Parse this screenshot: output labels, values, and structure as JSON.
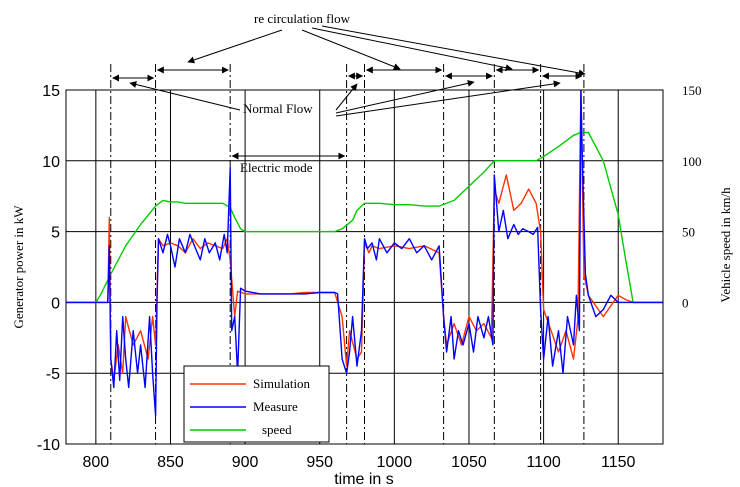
{
  "chart_data": {
    "type": "line",
    "xlabel": "time in s",
    "ylabel": "Generator power in kW",
    "ylabel_right": "Vehicle speed in km/h",
    "xlim": [
      780,
      1180
    ],
    "ylim": [
      -10,
      15
    ],
    "ylim_right": [
      -100,
      150
    ],
    "x_ticks": [
      800,
      850,
      900,
      950,
      1000,
      1050,
      1100,
      1150
    ],
    "y_ticks": [
      -10,
      -5,
      0,
      5,
      10,
      15
    ],
    "y_ticks_right": [
      0,
      50,
      100,
      150
    ],
    "grid": true,
    "legend_placement": "bottom-left",
    "legend": [
      "Simulation",
      "Measure",
      "speed"
    ],
    "colors": {
      "simulation": "#ff3300",
      "measure": "#0000ff",
      "speed": "#00cc00"
    },
    "annotations": {
      "recirculation": "re circulation flow",
      "normal": "Normal Flow",
      "electric": "Electric mode"
    },
    "phase_markers_x": [
      810,
      840,
      890,
      968,
      980,
      1033,
      1067,
      1098,
      1127
    ],
    "series": [
      {
        "name": "speed",
        "axis": "right",
        "x": [
          780,
          800,
          803,
          810,
          820,
          830,
          840,
          845,
          850,
          855,
          860,
          870,
          880,
          885,
          890,
          893,
          897,
          900,
          920,
          940,
          960,
          965,
          972,
          975,
          980,
          985,
          990,
          1000,
          1010,
          1020,
          1030,
          1040,
          1050,
          1060,
          1067,
          1070,
          1080,
          1095,
          1100,
          1110,
          1120,
          1125,
          1130,
          1140,
          1150,
          1155,
          1160,
          1180
        ],
        "values": [
          0,
          0,
          5,
          20,
          40,
          55,
          68,
          72,
          71,
          71,
          70,
          70,
          70,
          70,
          67,
          60,
          52,
          50,
          50,
          50,
          50,
          52,
          58,
          65,
          70,
          70,
          70,
          69,
          69,
          68,
          68,
          72,
          82,
          92,
          100,
          100,
          100,
          100,
          103,
          110,
          118,
          120,
          120,
          100,
          62,
          30,
          0,
          0
        ]
      },
      {
        "name": "Simulation",
        "axis": "left",
        "x": [
          780,
          805,
          808,
          809,
          810,
          812,
          815,
          818,
          820,
          825,
          830,
          835,
          838,
          840,
          842,
          845,
          850,
          855,
          860,
          865,
          870,
          875,
          880,
          885,
          888,
          890,
          893,
          895,
          900,
          910,
          920,
          930,
          940,
          950,
          960,
          965,
          968,
          970,
          975,
          978,
          980,
          983,
          985,
          990,
          1000,
          1010,
          1020,
          1030,
          1033,
          1035,
          1040,
          1045,
          1050,
          1055,
          1060,
          1065,
          1067,
          1070,
          1075,
          1080,
          1085,
          1090,
          1095,
          1098,
          1100,
          1105,
          1110,
          1115,
          1120,
          1123,
          1125,
          1127,
          1130,
          1140,
          1150,
          1155,
          1160,
          1180
        ],
        "values": [
          0,
          0,
          0,
          6,
          -4,
          -5.5,
          -3,
          -5,
          -1,
          -3,
          -2,
          -4,
          -1,
          -3,
          4.5,
          4,
          4.2,
          4,
          3.5,
          4.5,
          3.8,
          4.2,
          4,
          3.8,
          4.5,
          3,
          -1,
          0.8,
          0.6,
          0.6,
          0.6,
          0.6,
          0.7,
          0.7,
          0.7,
          -1,
          -4.5,
          -2,
          -4,
          -3.5,
          4.2,
          3.5,
          4,
          3.8,
          4,
          3.8,
          4,
          3.5,
          -1,
          -3,
          -1.5,
          -3,
          -1,
          -2,
          -1.5,
          -2.5,
          8,
          7,
          9,
          6.5,
          7,
          8,
          7,
          5,
          -0.5,
          -2,
          -3.5,
          -2,
          -4,
          -1.2,
          15,
          2,
          0.5,
          -1,
          0.5,
          0.2,
          0,
          0
        ]
      },
      {
        "name": "Measure",
        "axis": "left",
        "x": [
          780,
          805,
          808,
          809,
          810,
          812,
          814,
          816,
          818,
          820,
          822,
          825,
          828,
          830,
          833,
          836,
          838,
          840,
          841,
          842,
          845,
          848,
          850,
          853,
          856,
          860,
          863,
          866,
          870,
          873,
          876,
          880,
          883,
          886,
          888,
          890,
          891,
          893,
          895,
          897,
          900,
          910,
          920,
          930,
          940,
          950,
          960,
          962,
          965,
          968,
          970,
          972,
          975,
          978,
          980,
          982,
          985,
          988,
          990,
          995,
          1000,
          1005,
          1010,
          1015,
          1020,
          1025,
          1030,
          1033,
          1035,
          1038,
          1040,
          1043,
          1046,
          1050,
          1053,
          1056,
          1060,
          1063,
          1066,
          1067,
          1070,
          1073,
          1076,
          1080,
          1083,
          1086,
          1090,
          1093,
          1096,
          1098,
          1100,
          1103,
          1106,
          1110,
          1113,
          1116,
          1120,
          1122,
          1124,
          1125,
          1126,
          1128,
          1130,
          1135,
          1140,
          1145,
          1150,
          1155,
          1160,
          1180
        ],
        "values": [
          0,
          0,
          0,
          4,
          -4,
          -6,
          -2,
          -5.5,
          -1,
          -4,
          -6,
          -2,
          -5,
          -3,
          -6,
          -1,
          -5,
          -8,
          0,
          4.5,
          3.5,
          4.8,
          4,
          2.5,
          4.5,
          3.5,
          4.8,
          4,
          3,
          4.5,
          3.5,
          4.2,
          3,
          4.8,
          3.5,
          9.5,
          -2,
          -1,
          -5,
          1,
          0.8,
          0.6,
          0.6,
          0.6,
          0.6,
          0.7,
          0.7,
          0.6,
          -4,
          -5,
          -3.5,
          -1,
          -4.5,
          -2,
          4.5,
          3.8,
          4.2,
          3,
          4.5,
          3.5,
          4.2,
          3.8,
          4.5,
          3.5,
          4,
          3,
          4,
          -1,
          -3.5,
          -1,
          -4,
          -2,
          -3,
          -1.5,
          -3.5,
          -1,
          -2.5,
          -1,
          -3,
          9,
          5,
          6.5,
          4.5,
          5.5,
          4.8,
          5.2,
          5,
          4.8,
          5.3,
          -0.5,
          -4,
          -1,
          -4.5,
          -2,
          -5,
          -1,
          -3,
          0.5,
          -2,
          15,
          10,
          2,
          0.5,
          -1,
          -0.5,
          0.5,
          0,
          0,
          0,
          0
        ]
      }
    ]
  }
}
